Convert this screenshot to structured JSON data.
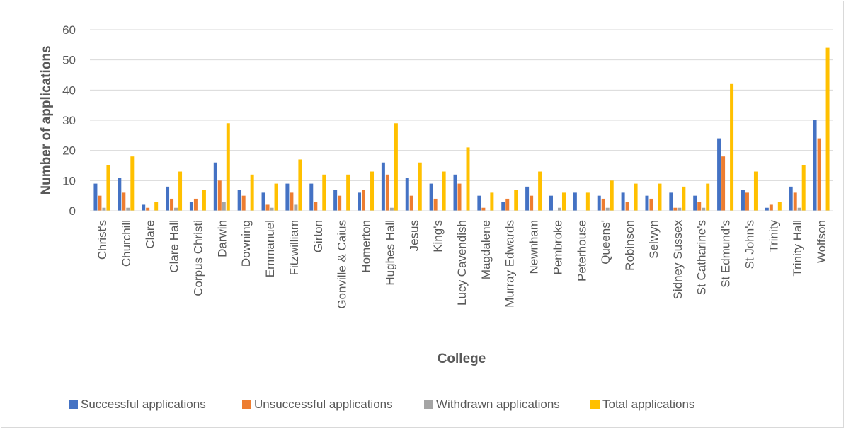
{
  "chart_data": {
    "type": "bar",
    "title": "",
    "xlabel": "College",
    "ylabel": "Number of applications",
    "ylim": [
      0,
      60
    ],
    "yticks": [
      0,
      10,
      20,
      30,
      40,
      50,
      60
    ],
    "grid": true,
    "legend_position": "bottom",
    "categories": [
      "Christ's",
      "Churchill",
      "Clare",
      "Clare Hall",
      "Corpus Christi",
      "Darwin",
      "Downing",
      "Emmanuel",
      "Fitzwilliam",
      "Girton",
      "Gonville & Caius",
      "Homerton",
      "Hughes Hall",
      "Jesus",
      "King's",
      "Lucy Cavendish",
      "Magdalene",
      "Murray Edwards",
      "Newnham",
      "Pembroke",
      "Peterhouse",
      "Queens'",
      "Robinson",
      "Selwyn",
      "Sidney Sussex",
      "St Catharine's",
      "St Edmund's",
      "St John's",
      "Trinity",
      "Trinity Hall",
      "Wolfson"
    ],
    "series": [
      {
        "name": "Successful applications",
        "color": "#4472C4",
        "values": [
          9,
          11,
          2,
          8,
          3,
          16,
          7,
          6,
          9,
          9,
          7,
          6,
          16,
          11,
          9,
          12,
          5,
          3,
          8,
          5,
          6,
          5,
          6,
          5,
          6,
          5,
          24,
          7,
          1,
          8,
          30
        ]
      },
      {
        "name": "Unsuccessful applications",
        "color": "#ED7D31",
        "values": [
          5,
          6,
          1,
          4,
          4,
          10,
          5,
          2,
          6,
          3,
          5,
          7,
          12,
          5,
          4,
          9,
          1,
          4,
          5,
          0,
          0,
          4,
          3,
          4,
          1,
          3,
          18,
          6,
          2,
          6,
          24
        ]
      },
      {
        "name": "Withdrawn applications",
        "color": "#A5A5A5",
        "values": [
          1,
          1,
          0,
          1,
          0,
          3,
          0,
          1,
          2,
          0,
          0,
          0,
          1,
          0,
          0,
          0,
          0,
          0,
          0,
          1,
          0,
          1,
          0,
          0,
          1,
          1,
          0,
          0,
          0,
          1,
          0
        ]
      },
      {
        "name": "Total applications",
        "color": "#FFC000",
        "values": [
          15,
          18,
          3,
          13,
          7,
          29,
          12,
          9,
          17,
          12,
          12,
          13,
          29,
          16,
          13,
          21,
          6,
          7,
          13,
          6,
          6,
          10,
          9,
          9,
          8,
          9,
          42,
          13,
          3,
          15,
          54
        ]
      }
    ],
    "gridline_color": "#d9d9d9",
    "text_color": "#595959"
  }
}
